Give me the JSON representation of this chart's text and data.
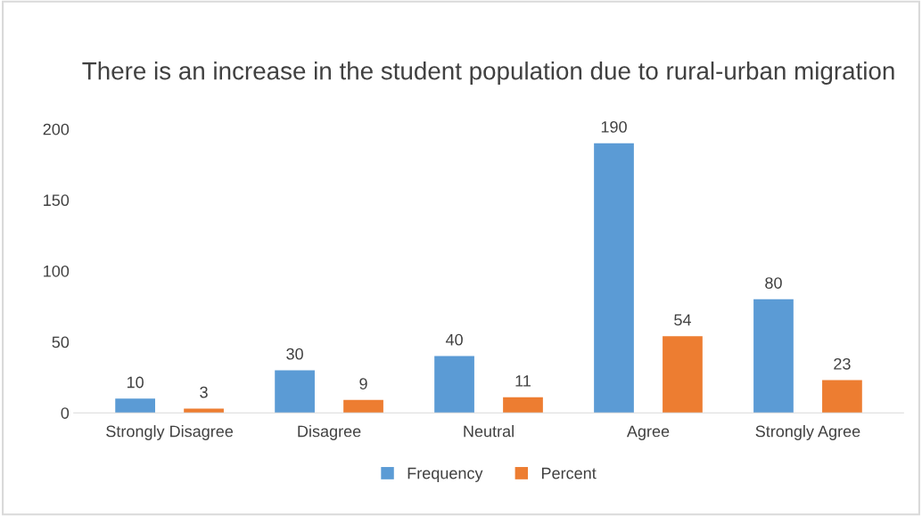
{
  "chart_data": {
    "type": "bar",
    "title": "There is an increase in the student population due to rural-urban migration",
    "categories": [
      "Strongly Disagree",
      "Disagree",
      "Neutral",
      "Agree",
      "Strongly Agree"
    ],
    "series": [
      {
        "name": "Frequency",
        "color": "#5b9bd5",
        "values": [
          10,
          30,
          40,
          190,
          80
        ]
      },
      {
        "name": "Percent",
        "color": "#ed7d31",
        "values": [
          3,
          9,
          11,
          54,
          23
        ]
      }
    ],
    "ylim": [
      0,
      200
    ],
    "yticks": [
      0,
      50,
      100,
      150,
      200
    ],
    "grid": false,
    "legend": "bottom",
    "data_labels": true
  }
}
